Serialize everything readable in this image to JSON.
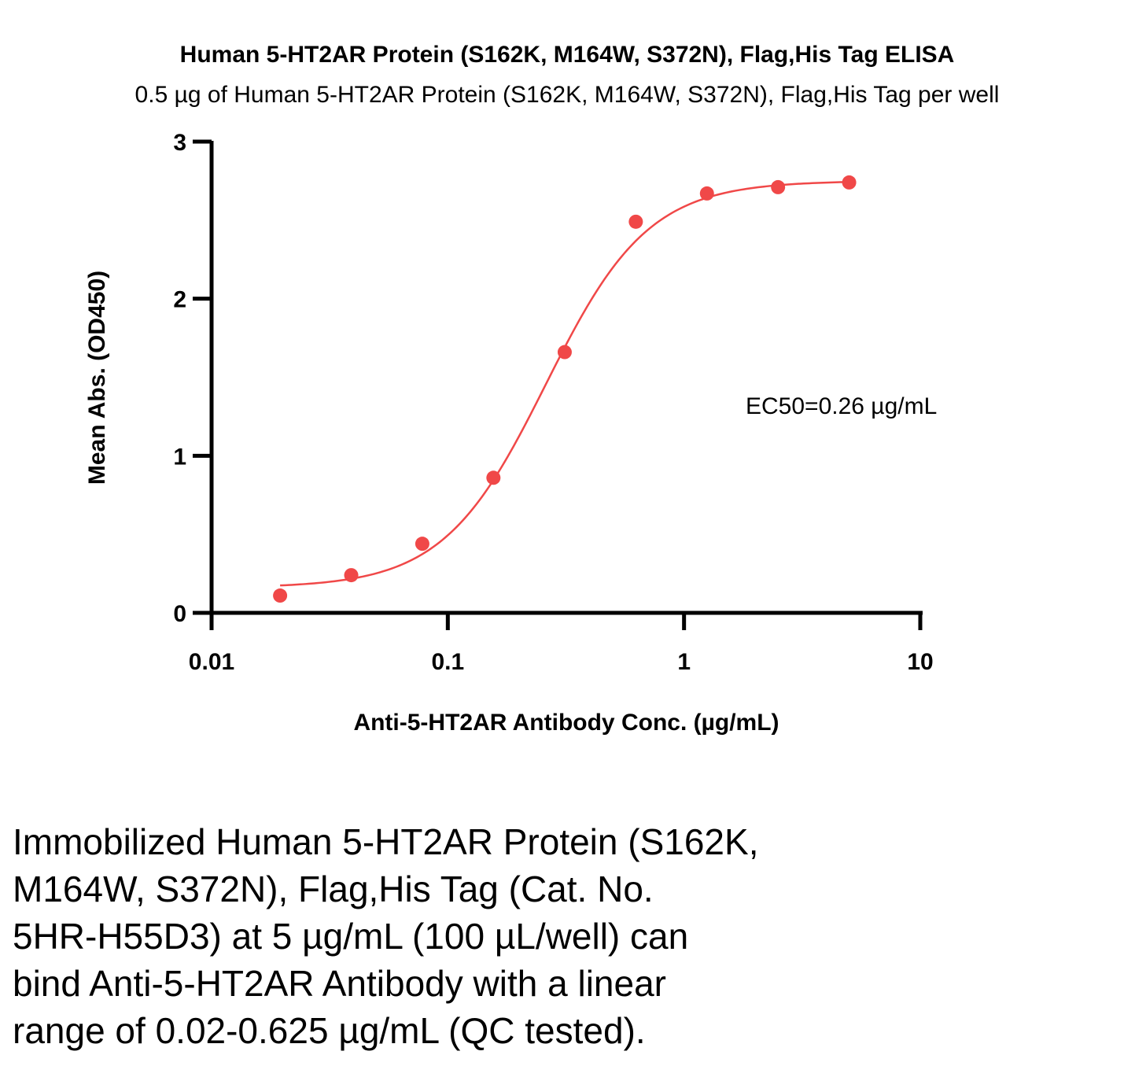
{
  "chart_data": {
    "type": "scatter",
    "title": "Human 5-HT2AR Protein (S162K, M164W, S372N), Flag,His Tag ELISA",
    "subtitle": "0.5 µg of Human 5-HT2AR Protein (S162K, M164W, S372N), Flag,His Tag per well",
    "xlabel": "Anti-5-HT2AR Antibody Conc. (µg/mL)",
    "ylabel": "Mean Abs. (OD450)",
    "xscale": "log",
    "xlim": [
      0.01,
      10
    ],
    "ylim": [
      0,
      3
    ],
    "x_ticks": [
      0.01,
      0.1,
      1,
      10
    ],
    "x_tick_labels": [
      "0.01",
      "0.1",
      "1",
      "10"
    ],
    "y_ticks": [
      0,
      1,
      2,
      3
    ],
    "y_tick_labels": [
      "0",
      "1",
      "2",
      "3"
    ],
    "grid": false,
    "series": [
      {
        "x": [
          0.0195,
          0.039,
          0.078,
          0.156,
          0.3125,
          0.625,
          1.25,
          2.5,
          5
        ],
        "y": [
          0.11,
          0.24,
          0.44,
          0.86,
          1.66,
          2.49,
          2.67,
          2.71,
          2.74
        ],
        "color": "#f04848",
        "fit": {
          "model": "4PL",
          "bottom": 0.16,
          "top": 2.75,
          "ec50": 0.26,
          "hill": 2.0,
          "x_range": [
            0.0195,
            5
          ]
        }
      }
    ],
    "annotation": "EC50=0.26 µg/mL"
  },
  "caption_lines": [
    "Immobilized Human 5-HT2AR Protein (S162K,",
    "M164W, S372N), Flag,His Tag (Cat. No.",
    "5HR-H55D3) at 5 µg/mL (100 µL/well) can",
    "bind Anti-5-HT2AR Antibody with a linear",
    "range of 0.02-0.625 µg/mL (QC tested)."
  ]
}
